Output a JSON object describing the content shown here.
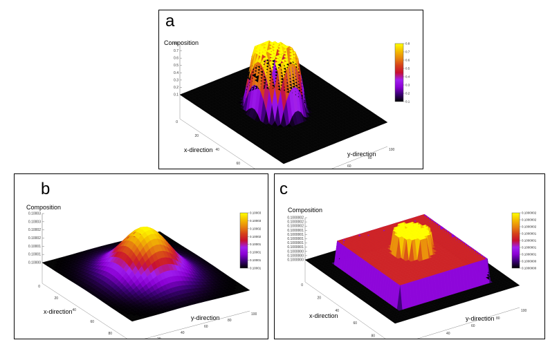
{
  "chart_data": [
    {
      "panel": "a",
      "type": "surface3d",
      "zlabel": "Composition",
      "xlabel": "x-direction",
      "ylabel": "y-direction",
      "x_ticks": [
        "0",
        "20",
        "40",
        "60",
        "80",
        "100"
      ],
      "y_ticks": [
        "0",
        "20",
        "40",
        "60",
        "80",
        "100"
      ],
      "z_ticks": [
        "0.1",
        "0.2",
        "0.3",
        "0.4",
        "0.5",
        "0.6",
        "0.7",
        "0.8"
      ],
      "colorbar_ticks": [
        "0.1",
        "0.2",
        "0.3",
        "0.4",
        "0.5",
        "0.6",
        "0.7",
        "0.8"
      ],
      "zlim": [
        0.1,
        0.8
      ],
      "shape": "flat-topped circular plateau",
      "background_value": 0.1,
      "peak_value": 0.8
    },
    {
      "panel": "b",
      "type": "surface3d",
      "zlabel": "Composition",
      "xlabel": "x-direction",
      "ylabel": "y-direction",
      "x_ticks": [
        "0",
        "20",
        "40",
        "60",
        "80",
        "100"
      ],
      "y_ticks": [
        "0",
        "20",
        "40",
        "60",
        "80",
        "100"
      ],
      "z_ticks": [
        "0.10000",
        "0.10001",
        "0.10001",
        "0.10002",
        "0.10002",
        "0.10003",
        "0.10003"
      ],
      "colorbar_ticks": [
        "0.10001",
        "0.10001",
        "0.10001",
        "0.10001",
        "0.10002",
        "0.10002",
        "0.10003",
        "0.10003"
      ],
      "shape": "smooth gaussian-like dome",
      "background_value": 0.1,
      "peak_value": 0.10003
    },
    {
      "panel": "c",
      "type": "surface3d",
      "zlabel": "Composition",
      "xlabel": "x-direction",
      "ylabel": "y-direction",
      "x_ticks": [
        "0",
        "20",
        "40",
        "60",
        "80",
        "100"
      ],
      "y_ticks": [
        "0",
        "20",
        "40",
        "60",
        "80",
        "100"
      ],
      "z_ticks": [
        "0.1000000",
        "0.1000000",
        "0.1000000",
        "0.1000001",
        "0.1000001",
        "0.1000001",
        "0.1000001",
        "0.1000001",
        "0.1000002",
        "0.1000002",
        "0.1000002"
      ],
      "colorbar_ticks": [
        "0.1000000",
        "0.1000000",
        "0.1000001",
        "0.1000001",
        "0.1000001",
        "0.1000001",
        "0.1000002",
        "0.1000002",
        "0.1000002"
      ],
      "shape": "stepped plateau (two flat terraces)",
      "background_value": 0.1,
      "peak_value": 0.1000002
    }
  ],
  "panels": {
    "a": {
      "label": "a"
    },
    "b": {
      "label": "b"
    },
    "c": {
      "label": "c"
    }
  },
  "colors": {
    "palette": [
      "#000000",
      "#3a0073",
      "#8a00d4",
      "#a020f0",
      "#c8102f",
      "#d6421a",
      "#e8860e",
      "#f5c000",
      "#ffff00"
    ],
    "floor": "#050505",
    "grid": "#999999"
  }
}
